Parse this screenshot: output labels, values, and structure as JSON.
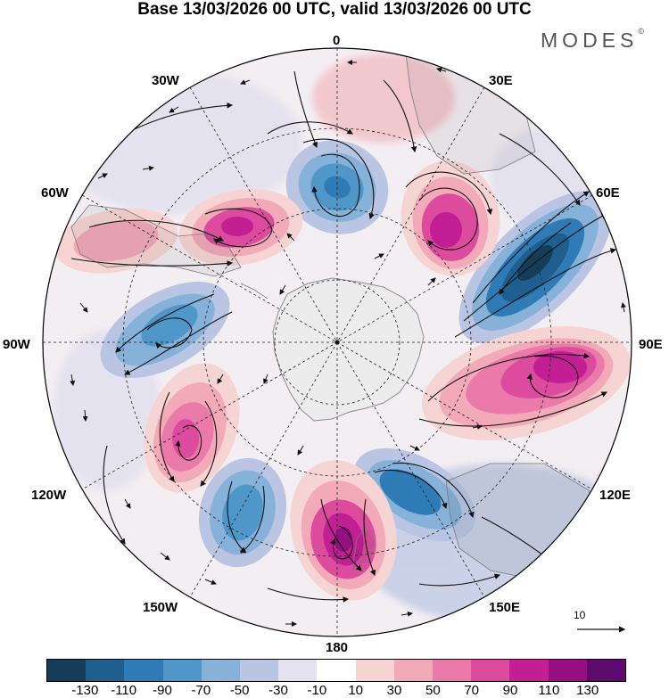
{
  "title": "Base 13/03/2026 00 UTC, valid 13/03/2026 00 UTC",
  "logo": "MODES",
  "logo_mark": "©",
  "longitude_labels": {
    "lon_0": "0",
    "lon_30e": "30E",
    "lon_60e": "60E",
    "lon_90e": "90E",
    "lon_120e": "120E",
    "lon_150e": "150E",
    "lon_180": "180",
    "lon_150w": "150W",
    "lon_120w": "120W",
    "lon_90w": "90W",
    "lon_60w": "60W",
    "lon_30w": "30W"
  },
  "reference_vector": "10",
  "colorbar": {
    "colors": [
      "#143d59",
      "#1f5f8f",
      "#2f7bb5",
      "#4f97c9",
      "#86b1d8",
      "#b9c5e2",
      "#e4e2ef",
      "#ffffff",
      "#f7d4d4",
      "#f2aab9",
      "#e97aaa",
      "#dc4b9d",
      "#c21f94",
      "#950f83",
      "#5e0b6e"
    ],
    "labels": [
      "-130",
      "-110",
      "-90",
      "-70",
      "-50",
      "-30",
      "-10",
      "10",
      "30",
      "50",
      "70",
      "90",
      "110",
      "130"
    ]
  }
}
